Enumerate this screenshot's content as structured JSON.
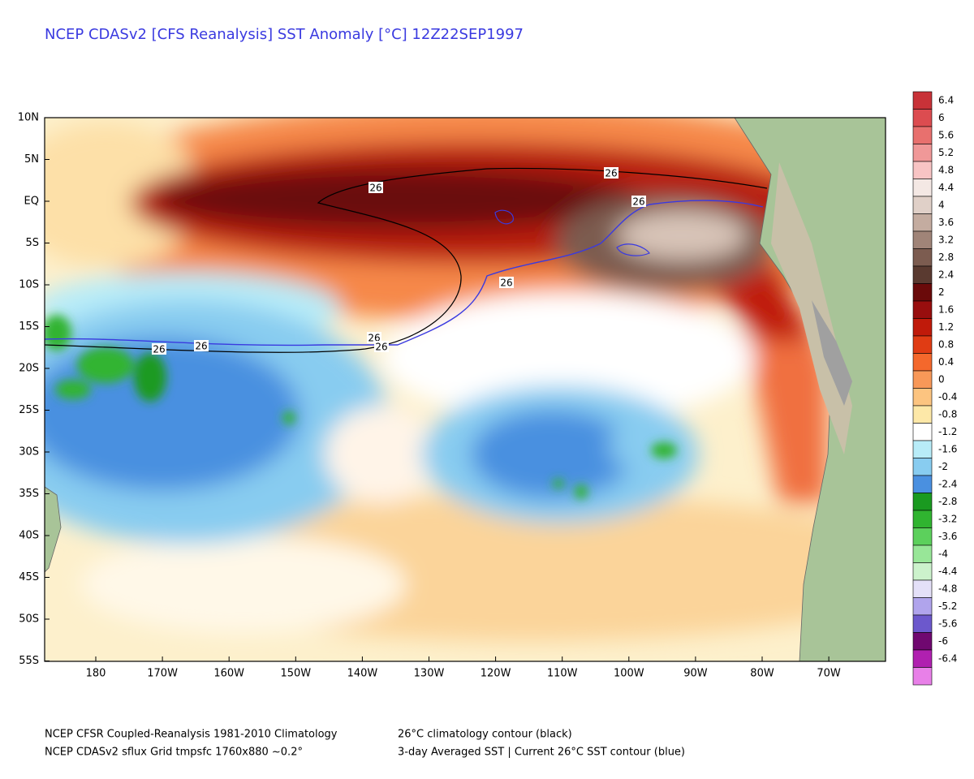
{
  "title": "NCEP CDASv2 [CFS Reanalysis] SST Anomaly [°C] 12Z22SEP1997",
  "lat_labels": [
    "10N",
    "5N",
    "EQ",
    "5S",
    "10S",
    "15S",
    "20S",
    "25S",
    "30S",
    "35S",
    "40S",
    "45S",
    "50S",
    "55S"
  ],
  "lon_labels": [
    "180",
    "170W",
    "160W",
    "150W",
    "140W",
    "130W",
    "120W",
    "110W",
    "100W",
    "90W",
    "80W",
    "70W"
  ],
  "colorbar": {
    "labels": [
      6.4,
      6,
      5.6,
      5.2,
      4.8,
      4.4,
      4,
      3.6,
      3.2,
      2.8,
      2.4,
      2,
      1.6,
      1.2,
      0.8,
      0.4,
      0,
      -0.4,
      -0.8,
      -1.2,
      -1.6,
      -2,
      -2.4,
      -2.8,
      -3.2,
      -3.6,
      -4,
      -4.4,
      -4.8,
      -5.2,
      -5.6,
      -6,
      -6.4
    ],
    "colors": [
      "#c83238",
      "#dc4c50",
      "#e8706e",
      "#f09898",
      "#f8c4c4",
      "#f4e8e4",
      "#e0d0c8",
      "#c4aca0",
      "#a08478",
      "#7c5c50",
      "#5a3a30",
      "#6a0a0a",
      "#980e0e",
      "#c01a0a",
      "#e03c14",
      "#f4682c",
      "#f89858",
      "#fcc480",
      "#fde8a8",
      "#ffffff",
      "#b8ecf8",
      "#88ccf0",
      "#4a90e0",
      "#1a9a20",
      "#30b430",
      "#5cd05c",
      "#98e698",
      "#ccf2cc",
      "#e4e0f8",
      "#b0a4ec",
      "#6c58cc",
      "#700870",
      "#b020b0",
      "#e880e8"
    ]
  },
  "contour_labels": [
    "26",
    "26",
    "26",
    "26",
    "26",
    "26",
    "26",
    "26"
  ],
  "footer": [
    [
      "NCEP CFSR Coupled-Reanalysis 1981-2010 Climatology",
      "26°C climatology contour (black)"
    ],
    [
      "NCEP CDASv2 sflux Grid tmpsfc 1760x880 ~0.2°",
      "3-day Averaged SST | Current 26°C SST contour (blue)"
    ]
  ]
}
